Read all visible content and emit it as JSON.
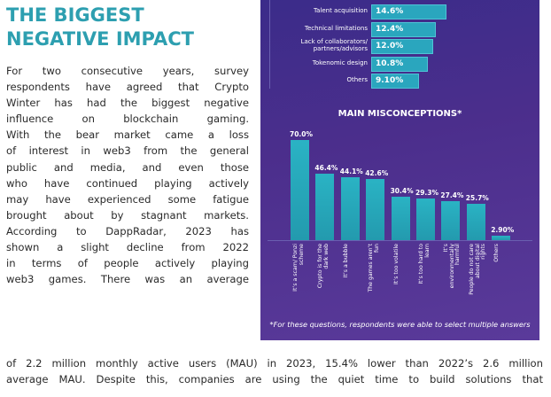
{
  "section": {
    "title_line1": "THE BIGGEST",
    "title_line2": "NEGATIVE IMPACT",
    "body_lines": [
      "For two consecutive years, survey",
      "respondents have agreed that Crypto",
      "Winter has had the biggest negative",
      "influence on blockchain gaming.",
      "With the bear market came a loss",
      "of interest in web3 from the general",
      "public and media, and even those",
      "who have continued playing actively",
      "may have experienced some fatigue",
      "brought about by stagnant markets.",
      "According to DappRadar, 2023 has",
      "shown a slight decline from 2022",
      "in terms of people actively playing",
      "web3 games. There was an average"
    ],
    "bottom_lines": [
      "of 2.2 million monthly active users (MAU) in 2023, 15.4% lower than 2022’s 2.6 million",
      "average MAU. Despite this, companies are using the quiet time to build solutions that"
    ]
  },
  "impact_bars": [
    {
      "label": "Talent acquisition",
      "value_label": "14.6%",
      "value": 14.6
    },
    {
      "label": "Technical limitations",
      "value_label": "12.4%",
      "value": 12.4
    },
    {
      "label": "Lack of collaborators/ partners/advisors",
      "value_label": "12.0%",
      "value": 12.0
    },
    {
      "label": "Tokenomic design",
      "value_label": "10.8%",
      "value": 10.8
    },
    {
      "label": "Others",
      "value_label": "9.10%",
      "value": 9.1
    }
  ],
  "chart_data": {
    "type": "bar",
    "title": "MAIN MISCONCEPTIONS*",
    "categories": [
      "It’s a scam/ Ponzi scheme",
      "Crypto is for the dark web",
      "It’s a bubble",
      "The games aren’t fun",
      "It’s too volatile",
      "It’s too hard to learn",
      "It’s environmentally harmful",
      "People do not care about digital rights",
      "Others"
    ],
    "values": [
      70.0,
      46.4,
      44.1,
      42.6,
      30.4,
      29.3,
      27.4,
      25.7,
      2.9
    ],
    "value_labels": [
      "70.0%",
      "46.4%",
      "44.1%",
      "42.6%",
      "30.4%",
      "29.3%",
      "27.4%",
      "25.7%",
      "2.90%"
    ],
    "ylim": [
      0,
      70
    ],
    "footnote": "*For these questions, respondents were able to select multiple answers"
  },
  "colors": {
    "accent": "#2d9fb0",
    "bar": "#2aa6be",
    "panel": "#4b2e8c"
  }
}
